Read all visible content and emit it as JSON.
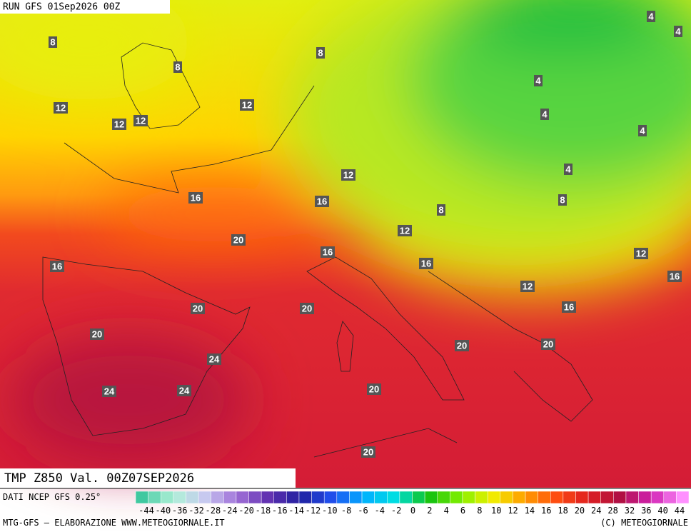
{
  "header": {
    "run": "RUN GFS 01Sep2026 00Z"
  },
  "map": {
    "contour_labels": [
      "8",
      "8",
      "8",
      "4",
      "4",
      "4",
      "4",
      "4",
      "4",
      "8",
      "8",
      "12",
      "12",
      "12",
      "12",
      "12",
      "12",
      "12",
      "12",
      "16",
      "16",
      "16",
      "16",
      "16",
      "16",
      "16",
      "20",
      "20",
      "20",
      "20",
      "20",
      "20",
      "20",
      "20",
      "24",
      "24",
      "24"
    ]
  },
  "footer": {
    "title": "TMP Z850 Val. 00Z07SEP2026",
    "source": "DATI NCEP GFS 0.25°",
    "credit": "MTG-GFS — ELABORAZIONE WWW.METEOGIORNALE.IT",
    "copyright": "(C) METEOGIORNALE",
    "scale_labels": [
      -44,
      -40,
      -36,
      -32,
      -28,
      -24,
      -20,
      -18,
      -16,
      -14,
      -12,
      -10,
      -8,
      -6,
      -4,
      -2,
      0,
      2,
      4,
      6,
      8,
      10,
      12,
      14,
      16,
      18,
      20,
      24,
      28,
      32,
      36,
      40,
      44
    ]
  }
}
